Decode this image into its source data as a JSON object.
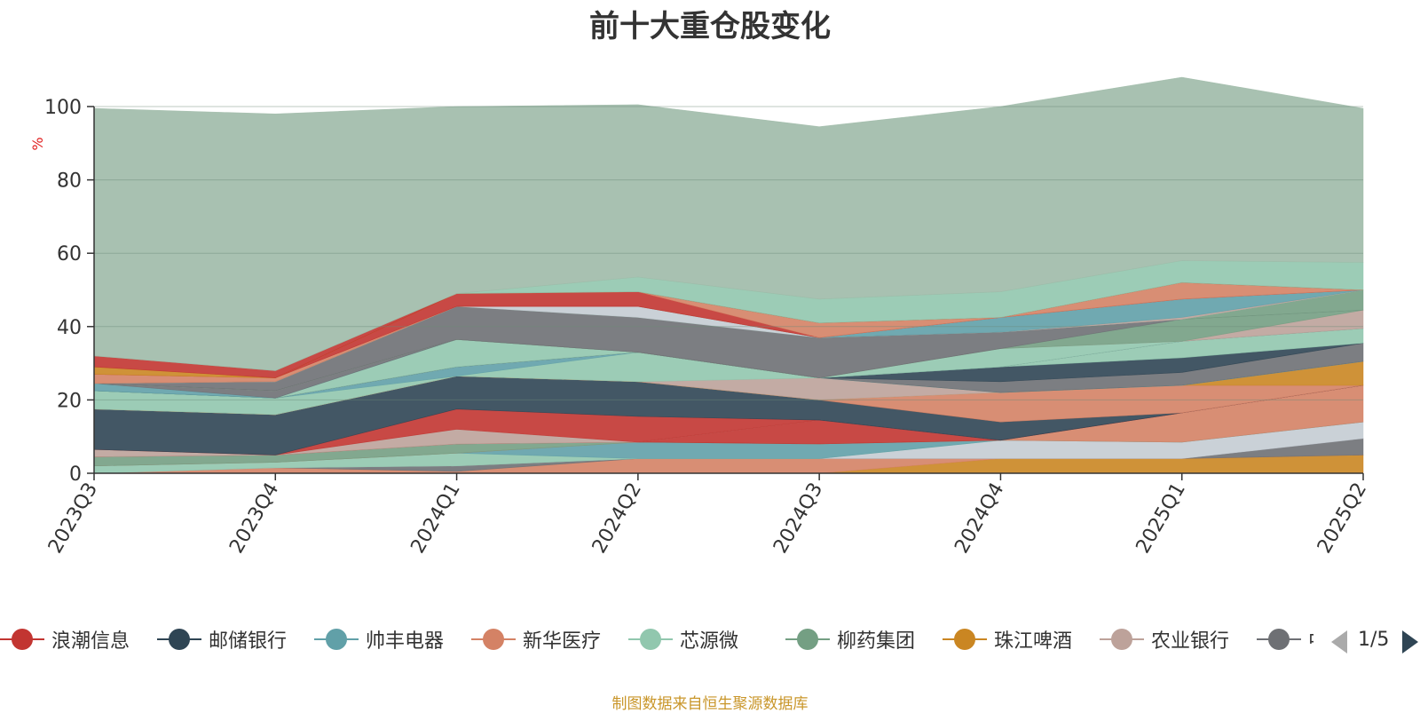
{
  "title": "前十大重仓股变化",
  "source": "制图数据来自恒生聚源数据库",
  "pager": "1/5",
  "chart_data": {
    "type": "area",
    "stacked": true,
    "title": "前十大重仓股变化",
    "ylabel": "%",
    "ylim": [
      0,
      100
    ],
    "yticks": [
      0,
      20,
      40,
      60,
      80,
      100
    ],
    "grid": true,
    "legend_position": "bottom",
    "categories": [
      "2023Q3",
      "2023Q4",
      "2024Q1",
      "2024Q2",
      "2024Q3",
      "2024Q4",
      "2025Q1",
      "2025Q2"
    ],
    "series": [
      {
        "color": "#ca8622",
        "values": [
          0,
          0,
          0,
          0,
          0,
          4,
          4,
          5
        ]
      },
      {
        "color": "#d48265",
        "values": [
          0,
          1.5,
          0.5,
          4,
          4,
          0,
          0,
          0
        ]
      },
      {
        "color": "#6e7074",
        "values": [
          0,
          0,
          1.5,
          0,
          0,
          0,
          0,
          4.5
        ]
      },
      {
        "color": "#c4ccd3",
        "values": [
          0,
          0,
          0,
          0,
          0,
          5,
          4.5,
          4.5
        ]
      },
      {
        "color": "#91c7ae",
        "values": [
          2,
          1.5,
          3.5,
          0,
          0,
          0,
          0,
          0
        ]
      },
      {
        "color": "#61a0a8",
        "values": [
          0,
          0,
          0,
          4.5,
          4,
          0,
          0,
          0
        ]
      },
      {
        "color": "#d48265",
        "values": [
          0,
          0,
          0,
          0,
          0,
          0,
          8,
          10
        ]
      },
      {
        "color": "#749f83",
        "values": [
          2.5,
          2,
          2.5,
          0,
          0,
          0,
          0,
          0
        ]
      },
      {
        "color": "#c23531",
        "values": [
          0,
          0,
          0,
          0,
          6.5,
          0,
          0,
          0
        ]
      },
      {
        "color": "#bda29a",
        "values": [
          2,
          0,
          4,
          0,
          0,
          0,
          0,
          0
        ]
      },
      {
        "color": "#c23531",
        "values": [
          0,
          0,
          5.5,
          7,
          0,
          0,
          0,
          0
        ]
      },
      {
        "color": "#2f4554",
        "values": [
          11,
          11,
          9,
          9.5,
          5.5,
          5,
          0,
          0
        ]
      },
      {
        "color": "#d48265",
        "values": [
          0,
          0,
          0,
          0,
          0,
          8,
          7.5,
          0
        ]
      },
      {
        "color": "#ca8622",
        "values": [
          0,
          0,
          0,
          0,
          0,
          0,
          0,
          6.5
        ]
      },
      {
        "color": "#bda29a",
        "values": [
          0,
          0,
          0,
          0,
          6,
          0,
          0,
          0
        ]
      },
      {
        "color": "#91c7ae",
        "values": [
          5,
          4.5,
          0,
          8,
          0,
          0,
          0,
          0
        ]
      },
      {
        "color": "#61a0a8",
        "values": [
          0,
          0,
          2.5,
          0,
          0,
          0,
          0,
          0
        ]
      },
      {
        "color": "#6e7074",
        "values": [
          0,
          0,
          0,
          0,
          0,
          3,
          3.5,
          5
        ]
      },
      {
        "color": "#2f4554",
        "values": [
          0,
          0,
          0,
          0,
          0,
          4,
          4,
          0
        ]
      },
      {
        "color": "#91c7ae",
        "values": [
          0,
          0,
          7.5,
          0,
          0,
          0,
          4.5,
          4
        ]
      },
      {
        "color": "#61a0a8",
        "values": [
          2,
          0,
          0,
          0,
          0,
          0,
          0,
          0
        ]
      },
      {
        "color": "#6e7074",
        "values": [
          0,
          2,
          0,
          0,
          0,
          0,
          0,
          0
        ]
      },
      {
        "color": "#91c7ae",
        "values": [
          0,
          0,
          0,
          0,
          0,
          5,
          0,
          0
        ]
      },
      {
        "color": "#bda29a",
        "values": [
          0,
          0,
          0,
          0,
          0,
          0,
          0,
          5
        ]
      },
      {
        "color": "#749f83",
        "values": [
          0,
          0,
          0,
          0,
          0,
          0,
          6,
          0
        ]
      },
      {
        "color": "#6e7074",
        "values": [
          0,
          2.5,
          9,
          9.5,
          11,
          4.5,
          0,
          0
        ]
      },
      {
        "color": "#749f83",
        "values": [
          0,
          0,
          0,
          0,
          0,
          0,
          0,
          5.5
        ]
      },
      {
        "color": "#c4ccd3",
        "values": [
          0,
          0,
          0,
          3,
          0,
          0,
          0,
          0
        ]
      },
      {
        "color": "#bda29a",
        "values": [
          0,
          0,
          0,
          0,
          0,
          0,
          0.5,
          0
        ]
      },
      {
        "color": "#61a0a8",
        "values": [
          0,
          0,
          0,
          0,
          0,
          4,
          5,
          0
        ]
      },
      {
        "color": "#d48265",
        "values": [
          2.5,
          1,
          0,
          0,
          0,
          0,
          0,
          0
        ]
      },
      {
        "color": "#c23531",
        "values": [
          0,
          0,
          3.5,
          4,
          0,
          0,
          0,
          0
        ]
      },
      {
        "color": "#d48265",
        "values": [
          0,
          0,
          0,
          0,
          4,
          0,
          4.5,
          0
        ]
      },
      {
        "color": "#ca8622",
        "values": [
          2,
          0,
          0,
          0,
          0,
          0,
          0,
          0
        ]
      },
      {
        "color": "#c23531",
        "values": [
          3,
          2,
          0,
          0,
          0,
          0,
          0,
          0
        ]
      },
      {
        "color": "#91c7ae",
        "values": [
          0,
          0,
          0,
          4,
          6.5,
          7,
          6,
          7.5
        ]
      },
      {
        "color": "#9fbaa8",
        "values": [
          67.5,
          70,
          51,
          47,
          47,
          50.5,
          50,
          42
        ]
      }
    ],
    "legend": [
      {
        "name": "浪潮信息",
        "color": "#c23531"
      },
      {
        "name": "邮储银行",
        "color": "#2f4554"
      },
      {
        "name": "帅丰电器",
        "color": "#61a0a8"
      },
      {
        "name": "新华医疗",
        "color": "#d48265"
      },
      {
        "name": "芯源微",
        "color": "#91c7ae"
      },
      {
        "name": "柳药集团",
        "color": "#749f83"
      },
      {
        "name": "珠江啤酒",
        "color": "#ca8622"
      },
      {
        "name": "农业银行",
        "color": "#bda29a"
      },
      {
        "name": "中兴通讯",
        "color": "#6e7074"
      }
    ]
  }
}
